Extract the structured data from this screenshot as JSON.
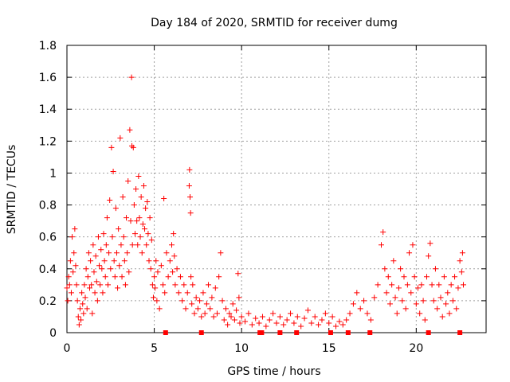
{
  "chart_data": {
    "type": "scatter",
    "title": "Day 184 of 2020, SRMTID for receiver dumg",
    "xlabel": "GPS time / hours",
    "ylabel": "SRMTID / TECUs",
    "xlim": [
      0,
      24
    ],
    "ylim": [
      0,
      1.8
    ],
    "xticks": [
      0,
      5,
      10,
      15,
      20
    ],
    "xtick_labels": [
      "0",
      "5",
      "10",
      "15",
      "20"
    ],
    "yticks": [
      0,
      0.2,
      0.4,
      0.6,
      0.8,
      1.0,
      1.2,
      1.4,
      1.6,
      1.8
    ],
    "ytick_labels": [
      "0",
      "0.2",
      "0.4",
      "0.6",
      "0.8",
      "1",
      "1.2",
      "1.4",
      "1.6",
      "1.8"
    ],
    "grid": true,
    "marker": "plus",
    "series": [
      {
        "name": "SRMTID",
        "color": "#ff0000",
        "points": [
          [
            0.0,
            0.28
          ],
          [
            0.05,
            0.2
          ],
          [
            0.1,
            0.35
          ],
          [
            0.15,
            0.3
          ],
          [
            0.2,
            0.45
          ],
          [
            0.25,
            0.25
          ],
          [
            0.3,
            0.6
          ],
          [
            0.35,
            0.38
          ],
          [
            0.4,
            0.5
          ],
          [
            0.45,
            0.65
          ],
          [
            0.5,
            0.42
          ],
          [
            0.55,
            0.3
          ],
          [
            0.6,
            0.2
          ],
          [
            0.65,
            0.1
          ],
          [
            0.7,
            0.05
          ],
          [
            0.75,
            0.15
          ],
          [
            0.8,
            0.08
          ],
          [
            0.85,
            0.25
          ],
          [
            0.9,
            0.18
          ],
          [
            0.95,
            0.12
          ],
          [
            1.0,
            0.3
          ],
          [
            1.05,
            0.22
          ],
          [
            1.1,
            0.4
          ],
          [
            1.15,
            0.15
          ],
          [
            1.2,
            0.35
          ],
          [
            1.25,
            0.5
          ],
          [
            1.3,
            0.28
          ],
          [
            1.35,
            0.45
          ],
          [
            1.4,
            0.3
          ],
          [
            1.45,
            0.12
          ],
          [
            1.5,
            0.55
          ],
          [
            1.55,
            0.38
          ],
          [
            1.6,
            0.25
          ],
          [
            1.65,
            0.48
          ],
          [
            1.7,
            0.32
          ],
          [
            1.75,
            0.2
          ],
          [
            1.8,
            0.6
          ],
          [
            1.85,
            0.42
          ],
          [
            1.9,
            0.3
          ],
          [
            1.95,
            0.52
          ],
          [
            2.0,
            0.4
          ],
          [
            2.05,
            0.25
          ],
          [
            2.1,
            0.62
          ],
          [
            2.15,
            0.45
          ],
          [
            2.2,
            0.35
          ],
          [
            2.25,
            0.55
          ],
          [
            2.3,
            0.72
          ],
          [
            2.35,
            0.3
          ],
          [
            2.4,
            0.5
          ],
          [
            2.45,
            0.83
          ],
          [
            2.5,
            0.4
          ],
          [
            2.55,
            1.16
          ],
          [
            2.6,
            0.6
          ],
          [
            2.65,
            1.01
          ],
          [
            2.7,
            0.45
          ],
          [
            2.75,
            0.35
          ],
          [
            2.8,
            0.78
          ],
          [
            2.85,
            0.5
          ],
          [
            2.9,
            0.28
          ],
          [
            2.95,
            0.65
          ],
          [
            3.0,
            0.42
          ],
          [
            3.05,
            1.22
          ],
          [
            3.1,
            0.55
          ],
          [
            3.15,
            0.35
          ],
          [
            3.2,
            0.85
          ],
          [
            3.25,
            0.6
          ],
          [
            3.3,
            0.45
          ],
          [
            3.35,
            0.3
          ],
          [
            3.4,
            0.72
          ],
          [
            3.45,
            0.5
          ],
          [
            3.5,
            0.95
          ],
          [
            3.55,
            0.38
          ],
          [
            3.6,
            1.27
          ],
          [
            3.65,
            0.7
          ],
          [
            3.7,
            1.6
          ],
          [
            3.72,
            1.17
          ],
          [
            3.75,
            0.55
          ],
          [
            3.8,
            1.16
          ],
          [
            3.85,
            0.8
          ],
          [
            3.9,
            0.62
          ],
          [
            3.95,
            0.9
          ],
          [
            4.0,
            0.7
          ],
          [
            4.05,
            0.55
          ],
          [
            4.1,
            0.98
          ],
          [
            4.15,
            0.72
          ],
          [
            4.2,
            0.6
          ],
          [
            4.25,
            0.85
          ],
          [
            4.3,
            0.5
          ],
          [
            4.35,
            0.68
          ],
          [
            4.4,
            0.92
          ],
          [
            4.45,
            0.65
          ],
          [
            4.5,
            0.78
          ],
          [
            4.55,
            0.55
          ],
          [
            4.6,
            0.82
          ],
          [
            4.65,
            0.62
          ],
          [
            4.7,
            0.45
          ],
          [
            4.75,
            0.72
          ],
          [
            4.8,
            0.4
          ],
          [
            4.85,
            0.58
          ],
          [
            4.9,
            0.3
          ],
          [
            4.95,
            0.22
          ],
          [
            5.0,
            0.35
          ],
          [
            5.05,
            0.28
          ],
          [
            5.1,
            0.45
          ],
          [
            5.15,
            0.2
          ],
          [
            5.2,
            0.38
          ],
          [
            5.3,
            0.15
          ],
          [
            5.4,
            0.42
          ],
          [
            5.5,
            0.3
          ],
          [
            5.55,
            0.84
          ],
          [
            5.6,
            0.25
          ],
          [
            5.7,
            0.5
          ],
          [
            5.8,
            0.35
          ],
          [
            5.9,
            0.45
          ],
          [
            6.0,
            0.55
          ],
          [
            6.05,
            0.38
          ],
          [
            6.1,
            0.62
          ],
          [
            6.15,
            0.48
          ],
          [
            6.2,
            0.3
          ],
          [
            6.3,
            0.4
          ],
          [
            6.4,
            0.25
          ],
          [
            6.5,
            0.35
          ],
          [
            6.6,
            0.2
          ],
          [
            6.7,
            0.3
          ],
          [
            6.8,
            0.15
          ],
          [
            6.9,
            0.25
          ],
          [
            7.0,
            0.92
          ],
          [
            7.02,
            1.02
          ],
          [
            7.05,
            0.85
          ],
          [
            7.08,
            0.75
          ],
          [
            7.1,
            0.35
          ],
          [
            7.15,
            0.18
          ],
          [
            7.2,
            0.3
          ],
          [
            7.3,
            0.12
          ],
          [
            7.4,
            0.22
          ],
          [
            7.5,
            0.15
          ],
          [
            7.6,
            0.2
          ],
          [
            7.7,
            0.1
          ],
          [
            7.8,
            0.25
          ],
          [
            7.9,
            0.12
          ],
          [
            8.0,
            0.18
          ],
          [
            8.1,
            0.3
          ],
          [
            8.2,
            0.15
          ],
          [
            8.3,
            0.22
          ],
          [
            8.4,
            0.1
          ],
          [
            8.5,
            0.28
          ],
          [
            8.6,
            0.12
          ],
          [
            8.7,
            0.35
          ],
          [
            8.8,
            0.5
          ],
          [
            8.9,
            0.2
          ],
          [
            9.0,
            0.08
          ],
          [
            9.1,
            0.15
          ],
          [
            9.2,
            0.05
          ],
          [
            9.3,
            0.12
          ],
          [
            9.4,
            0.1
          ],
          [
            9.5,
            0.18
          ],
          [
            9.6,
            0.08
          ],
          [
            9.7,
            0.14
          ],
          [
            9.8,
            0.37
          ],
          [
            9.85,
            0.22
          ],
          [
            9.9,
            0.06
          ],
          [
            10.0,
            0.1
          ],
          [
            10.2,
            0.07
          ],
          [
            10.4,
            0.12
          ],
          [
            10.6,
            0.05
          ],
          [
            10.8,
            0.09
          ],
          [
            11.0,
            0.06
          ],
          [
            11.2,
            0.1
          ],
          [
            11.4,
            0.04
          ],
          [
            11.6,
            0.08
          ],
          [
            11.8,
            0.12
          ],
          [
            12.0,
            0.06
          ],
          [
            12.2,
            0.1
          ],
          [
            12.4,
            0.05
          ],
          [
            12.6,
            0.08
          ],
          [
            12.8,
            0.12
          ],
          [
            13.0,
            0.06
          ],
          [
            13.2,
            0.1
          ],
          [
            13.4,
            0.04
          ],
          [
            13.6,
            0.09
          ],
          [
            13.8,
            0.14
          ],
          [
            14.0,
            0.06
          ],
          [
            14.2,
            0.1
          ],
          [
            14.4,
            0.05
          ],
          [
            14.6,
            0.08
          ],
          [
            14.8,
            0.12
          ],
          [
            15.0,
            0.06
          ],
          [
            15.2,
            0.1
          ],
          [
            15.4,
            0.04
          ],
          [
            15.6,
            0.07
          ],
          [
            15.8,
            0.05
          ],
          [
            16.0,
            0.08
          ],
          [
            16.2,
            0.12
          ],
          [
            16.4,
            0.18
          ],
          [
            16.6,
            0.25
          ],
          [
            16.8,
            0.15
          ],
          [
            17.0,
            0.2
          ],
          [
            17.2,
            0.12
          ],
          [
            17.4,
            0.08
          ],
          [
            17.6,
            0.22
          ],
          [
            17.8,
            0.3
          ],
          [
            18.0,
            0.55
          ],
          [
            18.1,
            0.63
          ],
          [
            18.2,
            0.4
          ],
          [
            18.3,
            0.25
          ],
          [
            18.4,
            0.35
          ],
          [
            18.5,
            0.18
          ],
          [
            18.6,
            0.3
          ],
          [
            18.7,
            0.45
          ],
          [
            18.8,
            0.22
          ],
          [
            18.9,
            0.12
          ],
          [
            19.0,
            0.28
          ],
          [
            19.1,
            0.4
          ],
          [
            19.2,
            0.2
          ],
          [
            19.3,
            0.35
          ],
          [
            19.4,
            0.15
          ],
          [
            19.5,
            0.3
          ],
          [
            19.6,
            0.5
          ],
          [
            19.7,
            0.25
          ],
          [
            19.8,
            0.55
          ],
          [
            19.9,
            0.35
          ],
          [
            20.0,
            0.18
          ],
          [
            20.1,
            0.28
          ],
          [
            20.2,
            0.12
          ],
          [
            20.3,
            0.3
          ],
          [
            20.4,
            0.2
          ],
          [
            20.5,
            0.08
          ],
          [
            20.6,
            0.35
          ],
          [
            20.7,
            0.48
          ],
          [
            20.8,
            0.56
          ],
          [
            20.9,
            0.3
          ],
          [
            21.0,
            0.2
          ],
          [
            21.1,
            0.4
          ],
          [
            21.2,
            0.15
          ],
          [
            21.3,
            0.3
          ],
          [
            21.4,
            0.22
          ],
          [
            21.5,
            0.1
          ],
          [
            21.6,
            0.35
          ],
          [
            21.7,
            0.18
          ],
          [
            21.8,
            0.25
          ],
          [
            21.9,
            0.12
          ],
          [
            22.0,
            0.3
          ],
          [
            22.1,
            0.2
          ],
          [
            22.2,
            0.35
          ],
          [
            22.3,
            0.15
          ],
          [
            22.4,
            0.28
          ],
          [
            22.5,
            0.45
          ],
          [
            22.6,
            0.38
          ],
          [
            22.65,
            0.5
          ],
          [
            22.7,
            0.3
          ]
        ]
      },
      {
        "name": "markers",
        "color": "#ff0000",
        "marker": "square",
        "points": [
          [
            5.65,
            0
          ],
          [
            7.7,
            0
          ],
          [
            11.05,
            0
          ],
          [
            11.15,
            0
          ],
          [
            12.2,
            0
          ],
          [
            13.15,
            0
          ],
          [
            15.1,
            0
          ],
          [
            16.1,
            0
          ],
          [
            17.35,
            0
          ],
          [
            20.7,
            0
          ],
          [
            22.5,
            0
          ]
        ]
      }
    ]
  }
}
